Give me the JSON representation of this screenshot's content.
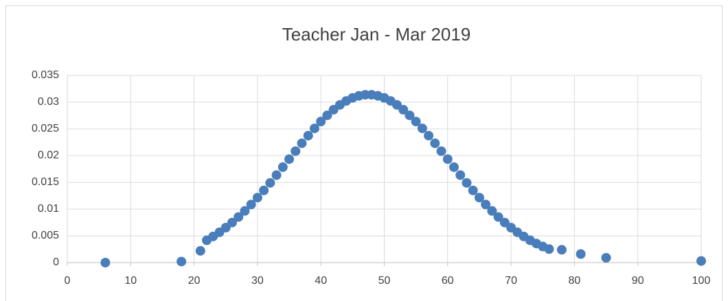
{
  "chart_data": {
    "type": "scatter",
    "title": "Teacher Jan - Mar 2019",
    "color": "#4a7ebb",
    "x": [
      6,
      18,
      21,
      22,
      23,
      24,
      25,
      26,
      27,
      28,
      29,
      30,
      31,
      32,
      33,
      34,
      35,
      36,
      37,
      38,
      39,
      40,
      41,
      42,
      43,
      44,
      45,
      46,
      47,
      48,
      49,
      50,
      51,
      52,
      53,
      54,
      55,
      56,
      57,
      58,
      59,
      60,
      61,
      62,
      63,
      64,
      65,
      66,
      67,
      68,
      69,
      70,
      71,
      72,
      73,
      74,
      75,
      76,
      78,
      81,
      85,
      100
    ],
    "values": [
      0,
      0.0002,
      0.0022,
      0.00418,
      0.00489,
      0.00567,
      0.00654,
      0.00749,
      0.00853,
      0.00966,
      0.01087,
      0.01215,
      0.0135,
      0.01491,
      0.01636,
      0.01785,
      0.01935,
      0.02084,
      0.02231,
      0.02374,
      0.0251,
      0.02638,
      0.02754,
      0.02859,
      0.02949,
      0.03023,
      0.0308,
      0.03118,
      0.03138,
      0.03138,
      0.03118,
      0.0308,
      0.03023,
      0.02949,
      0.02859,
      0.02754,
      0.02638,
      0.0251,
      0.02374,
      0.02231,
      0.02084,
      0.01935,
      0.01785,
      0.01636,
      0.01491,
      0.0135,
      0.01215,
      0.01087,
      0.00966,
      0.00853,
      0.00749,
      0.00654,
      0.00567,
      0.00489,
      0.00418,
      0.00356,
      0.00301,
      0.00253,
      0.0024,
      0.0016,
      0.0009,
      0.0003
    ],
    "xlim": [
      0,
      100
    ],
    "xticks": [
      0,
      10,
      20,
      30,
      40,
      50,
      60,
      70,
      80,
      90,
      100
    ],
    "ylim": [
      0,
      0.035
    ],
    "yticks": [
      0,
      0.005,
      0.01,
      0.015,
      0.02,
      0.025,
      0.03,
      0.035
    ],
    "grid": true
  }
}
